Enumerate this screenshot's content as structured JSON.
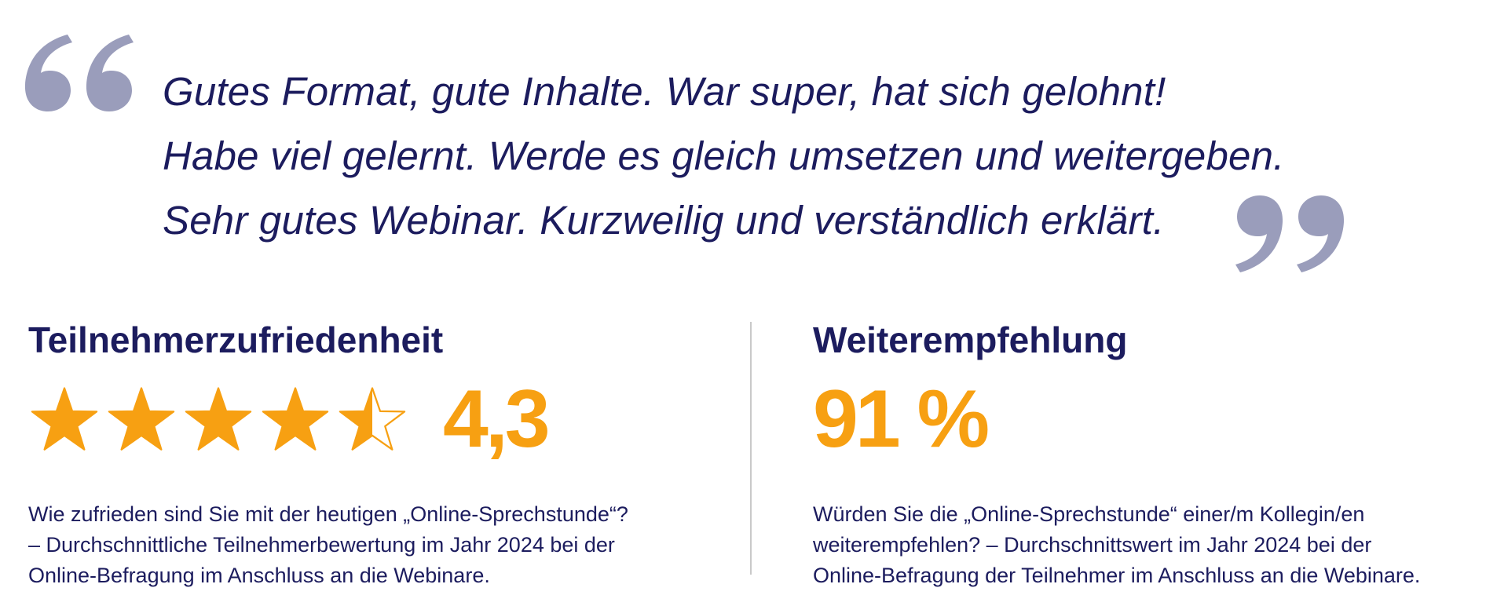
{
  "quotes": [
    "Gutes Format, gute Inhalte. War super, hat sich gelohnt!",
    "Habe viel gelernt. Werde es gleich umsetzen und weitergeben.",
    "Sehr gutes Webinar. Kurzweilig und verständlich erklärt."
  ],
  "satisfaction": {
    "heading": "Teilnehmerzufriedenheit",
    "rating": 4.3,
    "rating_max": 5,
    "value_label": "4,3",
    "desc_lines": [
      "Wie zufrieden sind Sie mit der heutigen „Online-Sprechstunde“?",
      "– Durchschnittliche Teilnehmerbewertung im Jahr 2024 bei der",
      "Online-Befragung im Anschluss an die Webinare."
    ]
  },
  "recommendation": {
    "heading": "Weiterempfehlung",
    "value_label": "91 %",
    "desc_lines": [
      "Würden Sie die „Online-Sprechstunde“ einer/m Kollegin/en",
      "weiterempfehlen? – Durchschnittswert im Jahr 2024 bei der",
      "Online-Befragung der Teilnehmer im Anschluss an die Webinare."
    ]
  },
  "colors": {
    "text": "#1c1c5e",
    "accent": "#f7a012",
    "quote_mark": "#9a9dbb",
    "divider": "#c9c9c9"
  },
  "icons": {
    "quote_open": "opening-quote-icon",
    "quote_close": "closing-quote-icon",
    "star": "star-icon"
  }
}
